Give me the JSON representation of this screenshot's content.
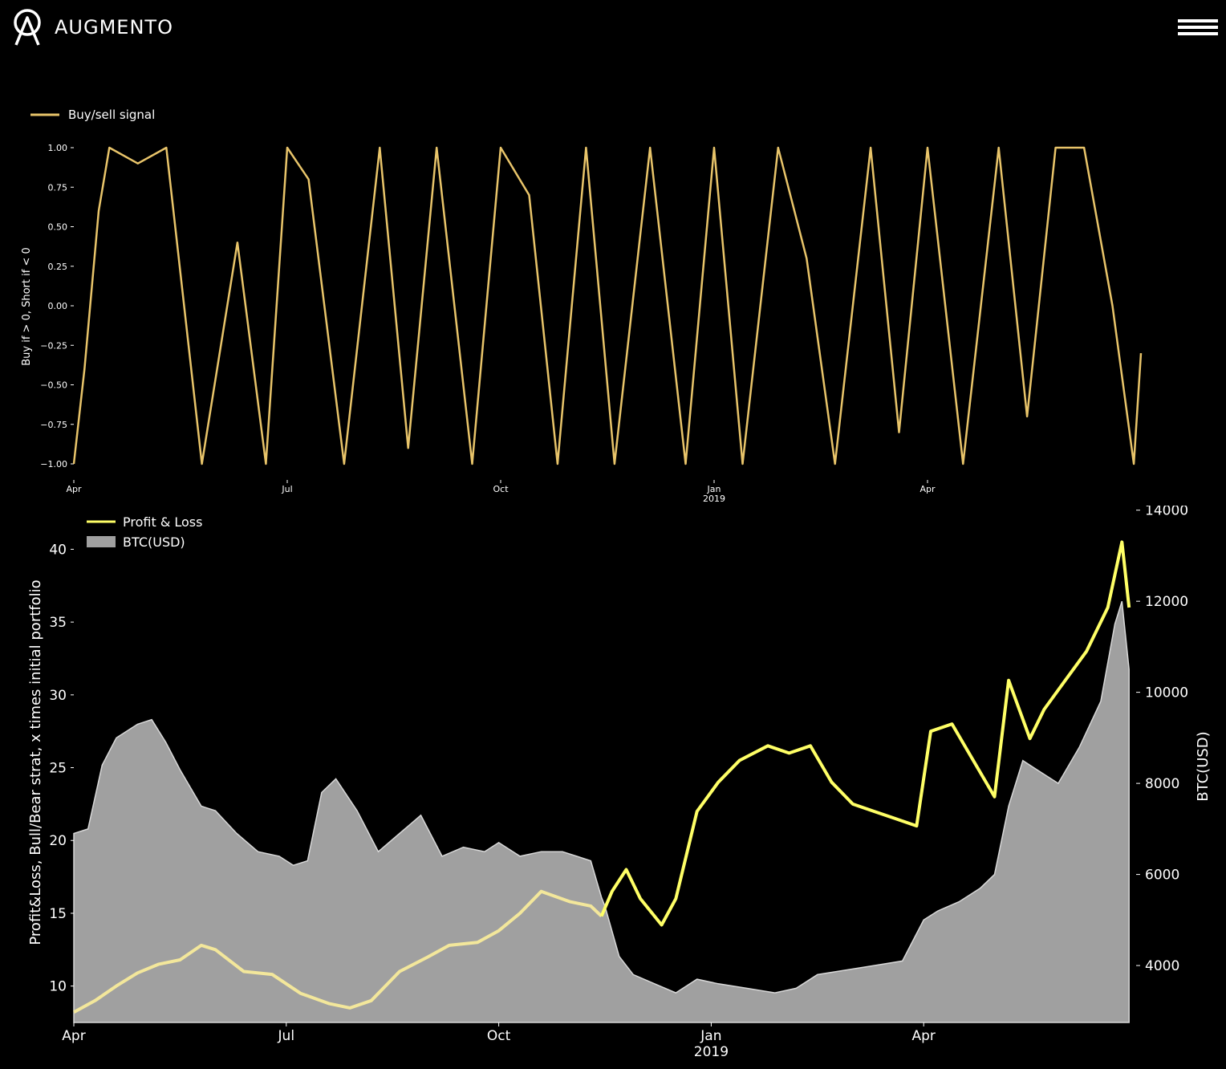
{
  "header": {
    "brand": "AUGMENTO",
    "logo_icon": "augmento-logo-icon",
    "menu_icon": "hamburger-menu-icon"
  },
  "chart_data": [
    {
      "type": "line",
      "title": "",
      "xlabel": "",
      "ylabel": "Buy if > 0, Short if < 0",
      "ylim": [
        -1.0,
        1.0
      ],
      "yticks": [
        "1.00",
        "0.75",
        "0.50",
        "0.25",
        "0.00",
        "−0.25",
        "−0.50",
        "−0.75",
        "−1.00"
      ],
      "xticks": [
        "Apr",
        "Jul",
        "Oct",
        "Jan",
        "Apr"
      ],
      "xtick_year": "2019",
      "legend": "top-left",
      "series": [
        {
          "name": "Buy/sell signal",
          "color": "#e8c46a",
          "x_months": [
            0.0,
            0.15,
            0.35,
            0.5,
            0.9,
            1.3,
            1.8,
            2.3,
            2.7,
            3.0,
            3.3,
            3.8,
            4.3,
            4.7,
            5.1,
            5.6,
            6.0,
            6.4,
            6.8,
            7.2,
            7.6,
            8.1,
            8.6,
            9.0,
            9.4,
            9.9,
            10.3,
            10.7,
            11.2,
            11.6,
            12.0,
            12.5,
            13.0,
            13.4,
            13.8,
            14.2,
            14.6,
            14.9,
            15.0
          ],
          "values": [
            -1.0,
            -0.4,
            0.6,
            1.0,
            0.9,
            1.0,
            -1.0,
            0.4,
            -1.0,
            1.0,
            0.8,
            -1.0,
            1.0,
            -0.9,
            1.0,
            -1.0,
            1.0,
            0.7,
            -1.0,
            1.0,
            -1.0,
            1.0,
            -1.0,
            1.0,
            -1.0,
            1.0,
            0.3,
            -1.0,
            1.0,
            -0.8,
            1.0,
            -1.0,
            1.0,
            -0.7,
            1.0,
            1.0,
            0.0,
            -1.0,
            -0.3
          ]
        }
      ]
    },
    {
      "type": "area",
      "title": "",
      "xlabel": "",
      "ylabel": "Profit&Loss, Bull/Bear strat, x times initial portfolio",
      "ylabel_right": "BTC(USD)",
      "ylim": [
        7.5,
        43
      ],
      "ylim_right": [
        2750,
        14100
      ],
      "yticks": [
        "10",
        "15",
        "20",
        "25",
        "30",
        "35",
        "40"
      ],
      "yticks_right": [
        "4000",
        "6000",
        "8000",
        "10000",
        "12000",
        "14000"
      ],
      "xticks": [
        "Apr",
        "Jul",
        "Oct",
        "Jan",
        "Apr"
      ],
      "xtick_year": "2019",
      "legend": "top-left",
      "series": [
        {
          "name": "Profit & Loss",
          "axis": "left",
          "color_before": "#f3e79b",
          "color_after": "#ffff66",
          "x_months": [
            0.0,
            0.3,
            0.6,
            0.9,
            1.2,
            1.5,
            1.8,
            2.0,
            2.4,
            2.8,
            3.2,
            3.6,
            3.9,
            4.2,
            4.6,
            5.0,
            5.3,
            5.7,
            6.0,
            6.3,
            6.6,
            7.0,
            7.3,
            7.45,
            7.6,
            7.8,
            8.0,
            8.3,
            8.5,
            8.8,
            9.1,
            9.4,
            9.8,
            10.1,
            10.4,
            10.7,
            11.0,
            11.3,
            11.6,
            11.9,
            12.1,
            12.4,
            12.7,
            13.0,
            13.2,
            13.5,
            13.7,
            14.0,
            14.3,
            14.6,
            14.8,
            14.9
          ],
          "values": [
            8.2,
            9.0,
            10.0,
            10.9,
            11.5,
            11.8,
            12.8,
            12.5,
            11.0,
            10.8,
            9.5,
            8.8,
            8.5,
            9.0,
            11.0,
            12.0,
            12.8,
            13.0,
            13.8,
            15.0,
            16.5,
            15.8,
            15.5,
            14.8,
            16.5,
            18.0,
            16.0,
            14.2,
            16.0,
            22.0,
            24.0,
            25.5,
            26.5,
            26.0,
            26.5,
            24.0,
            22.5,
            22.0,
            21.5,
            21.0,
            27.5,
            28.0,
            25.5,
            23.0,
            31.0,
            27.0,
            29.0,
            31.0,
            33.0,
            36.0,
            40.5,
            36.0
          ]
        },
        {
          "name": "BTC(USD)",
          "axis": "right",
          "color": "#a0a0a0",
          "x_months": [
            0.0,
            0.2,
            0.4,
            0.6,
            0.9,
            1.1,
            1.3,
            1.5,
            1.8,
            2.0,
            2.3,
            2.6,
            2.9,
            3.1,
            3.3,
            3.5,
            3.7,
            4.0,
            4.3,
            4.6,
            4.9,
            5.2,
            5.5,
            5.8,
            6.0,
            6.3,
            6.6,
            6.9,
            7.1,
            7.3,
            7.45,
            7.5,
            7.7,
            7.9,
            8.2,
            8.5,
            8.8,
            9.1,
            9.5,
            9.9,
            10.2,
            10.5,
            10.9,
            11.3,
            11.7,
            12.0,
            12.2,
            12.5,
            12.8,
            13.0,
            13.2,
            13.4,
            13.6,
            13.9,
            14.2,
            14.5,
            14.7,
            14.8,
            14.9
          ],
          "values": [
            6900,
            7000,
            8400,
            9000,
            9300,
            9400,
            8900,
            8300,
            7500,
            7400,
            6900,
            6500,
            6400,
            6200,
            6300,
            7800,
            8100,
            7400,
            6500,
            6900,
            7300,
            6400,
            6600,
            6500,
            6700,
            6400,
            6500,
            6500,
            6400,
            6300,
            5500,
            5300,
            4200,
            3800,
            3600,
            3400,
            3700,
            3600,
            3500,
            3400,
            3500,
            3800,
            3900,
            4000,
            4100,
            5000,
            5200,
            5400,
            5700,
            6000,
            7500,
            8500,
            8300,
            8000,
            8800,
            9800,
            11500,
            12000,
            10500
          ]
        }
      ]
    }
  ]
}
